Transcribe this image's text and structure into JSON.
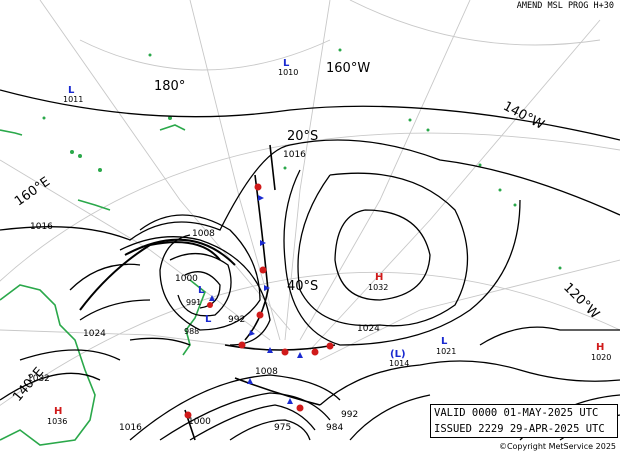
{
  "header": {
    "title": "AMEND MSL PROG H+30"
  },
  "graticule_labels": [
    "180°",
    "160°W",
    "140°W",
    "160°E",
    "20°S",
    "40°S",
    "120°W",
    "140°E"
  ],
  "isobar_labels": [
    "1016",
    "1008",
    "1000",
    "992",
    "1024",
    "1032",
    "1016",
    "1008",
    "1000",
    "992",
    "984",
    "975",
    "1016",
    "1024"
  ],
  "systems": [
    {
      "type": "L",
      "value": "1010"
    },
    {
      "type": "L",
      "value": "1011"
    },
    {
      "type": "H",
      "value": "1032"
    },
    {
      "type": "L",
      "value": "1021"
    },
    {
      "type": "L",
      "value": "1014",
      "note": "(L)"
    },
    {
      "type": "H",
      "value": "1020"
    },
    {
      "type": "H",
      "value": "1036"
    },
    {
      "type": "L",
      "value": "991"
    },
    {
      "type": "L",
      "value": "988"
    }
  ],
  "info_box": {
    "valid": "VALID  0000 01-MAY-2025 UTC",
    "issued": "ISSUED 2229 29-APR-2025 UTC"
  },
  "copyright": "©Copyright MetService 2025",
  "colors": {
    "coast": "#2aa84a",
    "low": "#1a2ad0",
    "high": "#d01a1a",
    "cold_front": "#1a2ad0",
    "warm_front": "#d01a1a"
  }
}
